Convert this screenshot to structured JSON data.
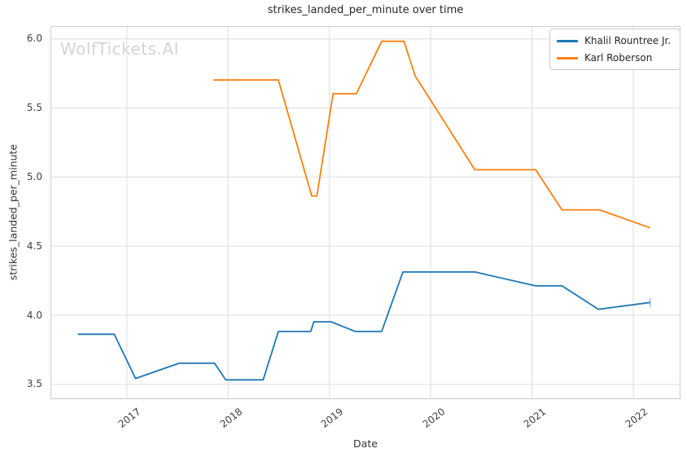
{
  "page": {
    "watermark": "WolfTickets.AI"
  },
  "style_colors": {
    "background": "#ffffff",
    "grid": "#dcdcdc",
    "spine": "#cccccc",
    "title_text": "#262626",
    "tick_text": "#404040",
    "watermark_text": "#d4d4d4",
    "legend_border": "#cccccc",
    "series_blue": "#1f77b4",
    "series_orange": "#ff7f0e"
  },
  "chart_data": {
    "type": "line",
    "title": "strikes_landed_per_minute over time",
    "xlabel": "Date",
    "ylabel": "strikes_landed_per_minute",
    "xlim": [
      2016.25,
      2022.47
    ],
    "ylim": [
      3.39,
      6.09
    ],
    "xticks": [
      2017,
      2018,
      2019,
      2020,
      2021,
      2022
    ],
    "xtick_labels": [
      "2017",
      "2018",
      "2019",
      "2020",
      "2021",
      "2022"
    ],
    "yticks": [
      3.5,
      4.0,
      4.5,
      5.0,
      5.5,
      6.0
    ],
    "ytick_labels": [
      "3.5",
      "4.0",
      "4.5",
      "5.0",
      "5.5",
      "6.0"
    ],
    "grid": true,
    "legend_position": "upper right",
    "series": [
      {
        "name": "Khalil Rountree Jr.",
        "color": "#1f77b4",
        "end_tick": true,
        "x": [
          2016.52,
          2016.88,
          2017.09,
          2017.52,
          2017.87,
          2017.98,
          2018.35,
          2018.5,
          2018.82,
          2018.85,
          2019.02,
          2019.26,
          2019.52,
          2019.73,
          2020.44,
          2021.04,
          2021.3,
          2021.66,
          2022.17
        ],
        "y": [
          3.86,
          3.86,
          3.54,
          3.65,
          3.65,
          3.53,
          3.53,
          3.88,
          3.88,
          3.95,
          3.95,
          3.88,
          3.88,
          4.31,
          4.31,
          4.21,
          4.21,
          4.04,
          4.09
        ]
      },
      {
        "name": "Karl Roberson",
        "color": "#ff7f0e",
        "end_tick": false,
        "x": [
          2017.86,
          2018.5,
          2018.83,
          2018.88,
          2019.04,
          2019.27,
          2019.52,
          2019.74,
          2019.85,
          2020.44,
          2021.04,
          2021.3,
          2021.67,
          2022.17
        ],
        "y": [
          5.7,
          5.7,
          4.86,
          4.86,
          5.6,
          5.6,
          5.98,
          5.98,
          5.73,
          5.05,
          5.05,
          4.76,
          4.76,
          4.63
        ]
      }
    ]
  }
}
